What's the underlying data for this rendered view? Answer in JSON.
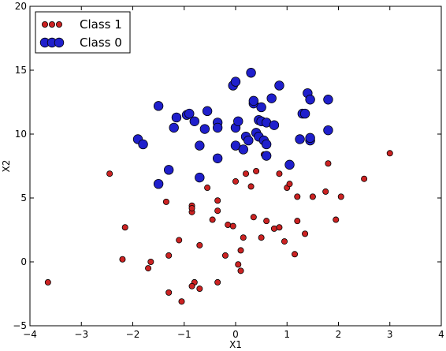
{
  "chart_data": {
    "type": "scatter",
    "title": "",
    "xlabel": "X1",
    "ylabel": "X2",
    "xlim": [
      -4,
      4
    ],
    "ylim": [
      -5,
      20
    ],
    "xticks": [
      -4,
      -3,
      -2,
      -1,
      0,
      1,
      2,
      3,
      4
    ],
    "yticks": [
      -5,
      0,
      5,
      10,
      15,
      20
    ],
    "tick_labels_x": [
      "−4",
      "−3",
      "−2",
      "−1",
      "0",
      "1",
      "2",
      "3",
      "4"
    ],
    "tick_labels_y": [
      "−5",
      "0",
      "5",
      "10",
      "15",
      "20"
    ],
    "grid": false,
    "legend": {
      "placement": "top-left",
      "entries": [
        "Class 1",
        "Class 0"
      ]
    },
    "series": [
      {
        "name": "Class 1",
        "color": "#cc2222",
        "marker_size": "small",
        "points": [
          [
            -3.65,
            -1.6
          ],
          [
            -2.45,
            6.9
          ],
          [
            -2.15,
            2.7
          ],
          [
            -2.2,
            0.2
          ],
          [
            -1.7,
            -0.5
          ],
          [
            -1.65,
            0.0
          ],
          [
            -1.35,
            4.7
          ],
          [
            -1.3,
            0.5
          ],
          [
            -1.3,
            -2.4
          ],
          [
            -1.1,
            1.7
          ],
          [
            -1.05,
            -3.1
          ],
          [
            -0.85,
            4.4
          ],
          [
            -0.85,
            3.9
          ],
          [
            -0.85,
            4.2
          ],
          [
            -0.8,
            -1.6
          ],
          [
            -0.85,
            -1.9
          ],
          [
            -0.7,
            1.3
          ],
          [
            -0.7,
            -2.1
          ],
          [
            -0.55,
            5.8
          ],
          [
            -0.45,
            3.3
          ],
          [
            -0.35,
            4.0
          ],
          [
            -0.35,
            4.8
          ],
          [
            -0.35,
            -1.6
          ],
          [
            -0.2,
            0.5
          ],
          [
            -0.15,
            2.9
          ],
          [
            -0.05,
            2.8
          ],
          [
            0.0,
            6.3
          ],
          [
            0.05,
            -0.2
          ],
          [
            0.1,
            -0.7
          ],
          [
            0.1,
            0.9
          ],
          [
            0.15,
            1.9
          ],
          [
            0.2,
            6.9
          ],
          [
            0.3,
            5.9
          ],
          [
            0.35,
            3.5
          ],
          [
            0.4,
            7.1
          ],
          [
            0.5,
            1.9
          ],
          [
            0.55,
            8.4
          ],
          [
            0.6,
            3.2
          ],
          [
            0.75,
            2.6
          ],
          [
            0.85,
            2.7
          ],
          [
            0.85,
            6.9
          ],
          [
            0.95,
            1.6
          ],
          [
            1.0,
            5.8
          ],
          [
            1.05,
            6.1
          ],
          [
            1.15,
            0.6
          ],
          [
            1.2,
            5.1
          ],
          [
            1.2,
            3.2
          ],
          [
            1.35,
            2.2
          ],
          [
            1.5,
            5.1
          ],
          [
            1.75,
            5.5
          ],
          [
            1.8,
            7.7
          ],
          [
            1.95,
            3.3
          ],
          [
            2.05,
            5.1
          ],
          [
            2.5,
            6.5
          ],
          [
            3.0,
            8.5
          ]
        ]
      },
      {
        "name": "Class 0",
        "color": "#1f1fcc",
        "marker_size": "large",
        "points": [
          [
            -1.9,
            9.6
          ],
          [
            -1.8,
            9.2
          ],
          [
            -1.5,
            12.2
          ],
          [
            -1.5,
            6.1
          ],
          [
            -1.3,
            7.2
          ],
          [
            -1.2,
            10.5
          ],
          [
            -1.15,
            11.3
          ],
          [
            -0.95,
            11.5
          ],
          [
            -0.9,
            11.6
          ],
          [
            -0.8,
            11.0
          ],
          [
            -0.7,
            9.1
          ],
          [
            -0.6,
            10.4
          ],
          [
            -0.55,
            11.8
          ],
          [
            -0.35,
            10.9
          ],
          [
            -0.35,
            10.5
          ],
          [
            -0.35,
            8.1
          ],
          [
            -0.7,
            6.6
          ],
          [
            -0.05,
            13.8
          ],
          [
            0.0,
            14.1
          ],
          [
            0.0,
            10.5
          ],
          [
            0.0,
            9.1
          ],
          [
            0.05,
            11.0
          ],
          [
            0.15,
            8.8
          ],
          [
            0.2,
            9.8
          ],
          [
            0.25,
            9.5
          ],
          [
            0.3,
            14.8
          ],
          [
            0.35,
            12.4
          ],
          [
            0.35,
            12.6
          ],
          [
            0.4,
            10.1
          ],
          [
            0.45,
            9.8
          ],
          [
            0.45,
            11.1
          ],
          [
            0.5,
            12.1
          ],
          [
            0.5,
            11.0
          ],
          [
            0.55,
            9.5
          ],
          [
            0.6,
            9.2
          ],
          [
            0.6,
            10.9
          ],
          [
            0.6,
            8.3
          ],
          [
            0.7,
            12.8
          ],
          [
            0.75,
            10.7
          ],
          [
            0.85,
            13.8
          ],
          [
            1.05,
            7.6
          ],
          [
            1.3,
            11.6
          ],
          [
            1.35,
            11.6
          ],
          [
            1.4,
            13.2
          ],
          [
            1.45,
            12.7
          ],
          [
            1.45,
            9.5
          ],
          [
            1.45,
            9.7
          ],
          [
            1.25,
            9.6
          ],
          [
            1.8,
            12.7
          ],
          [
            1.8,
            10.3
          ]
        ]
      }
    ]
  }
}
